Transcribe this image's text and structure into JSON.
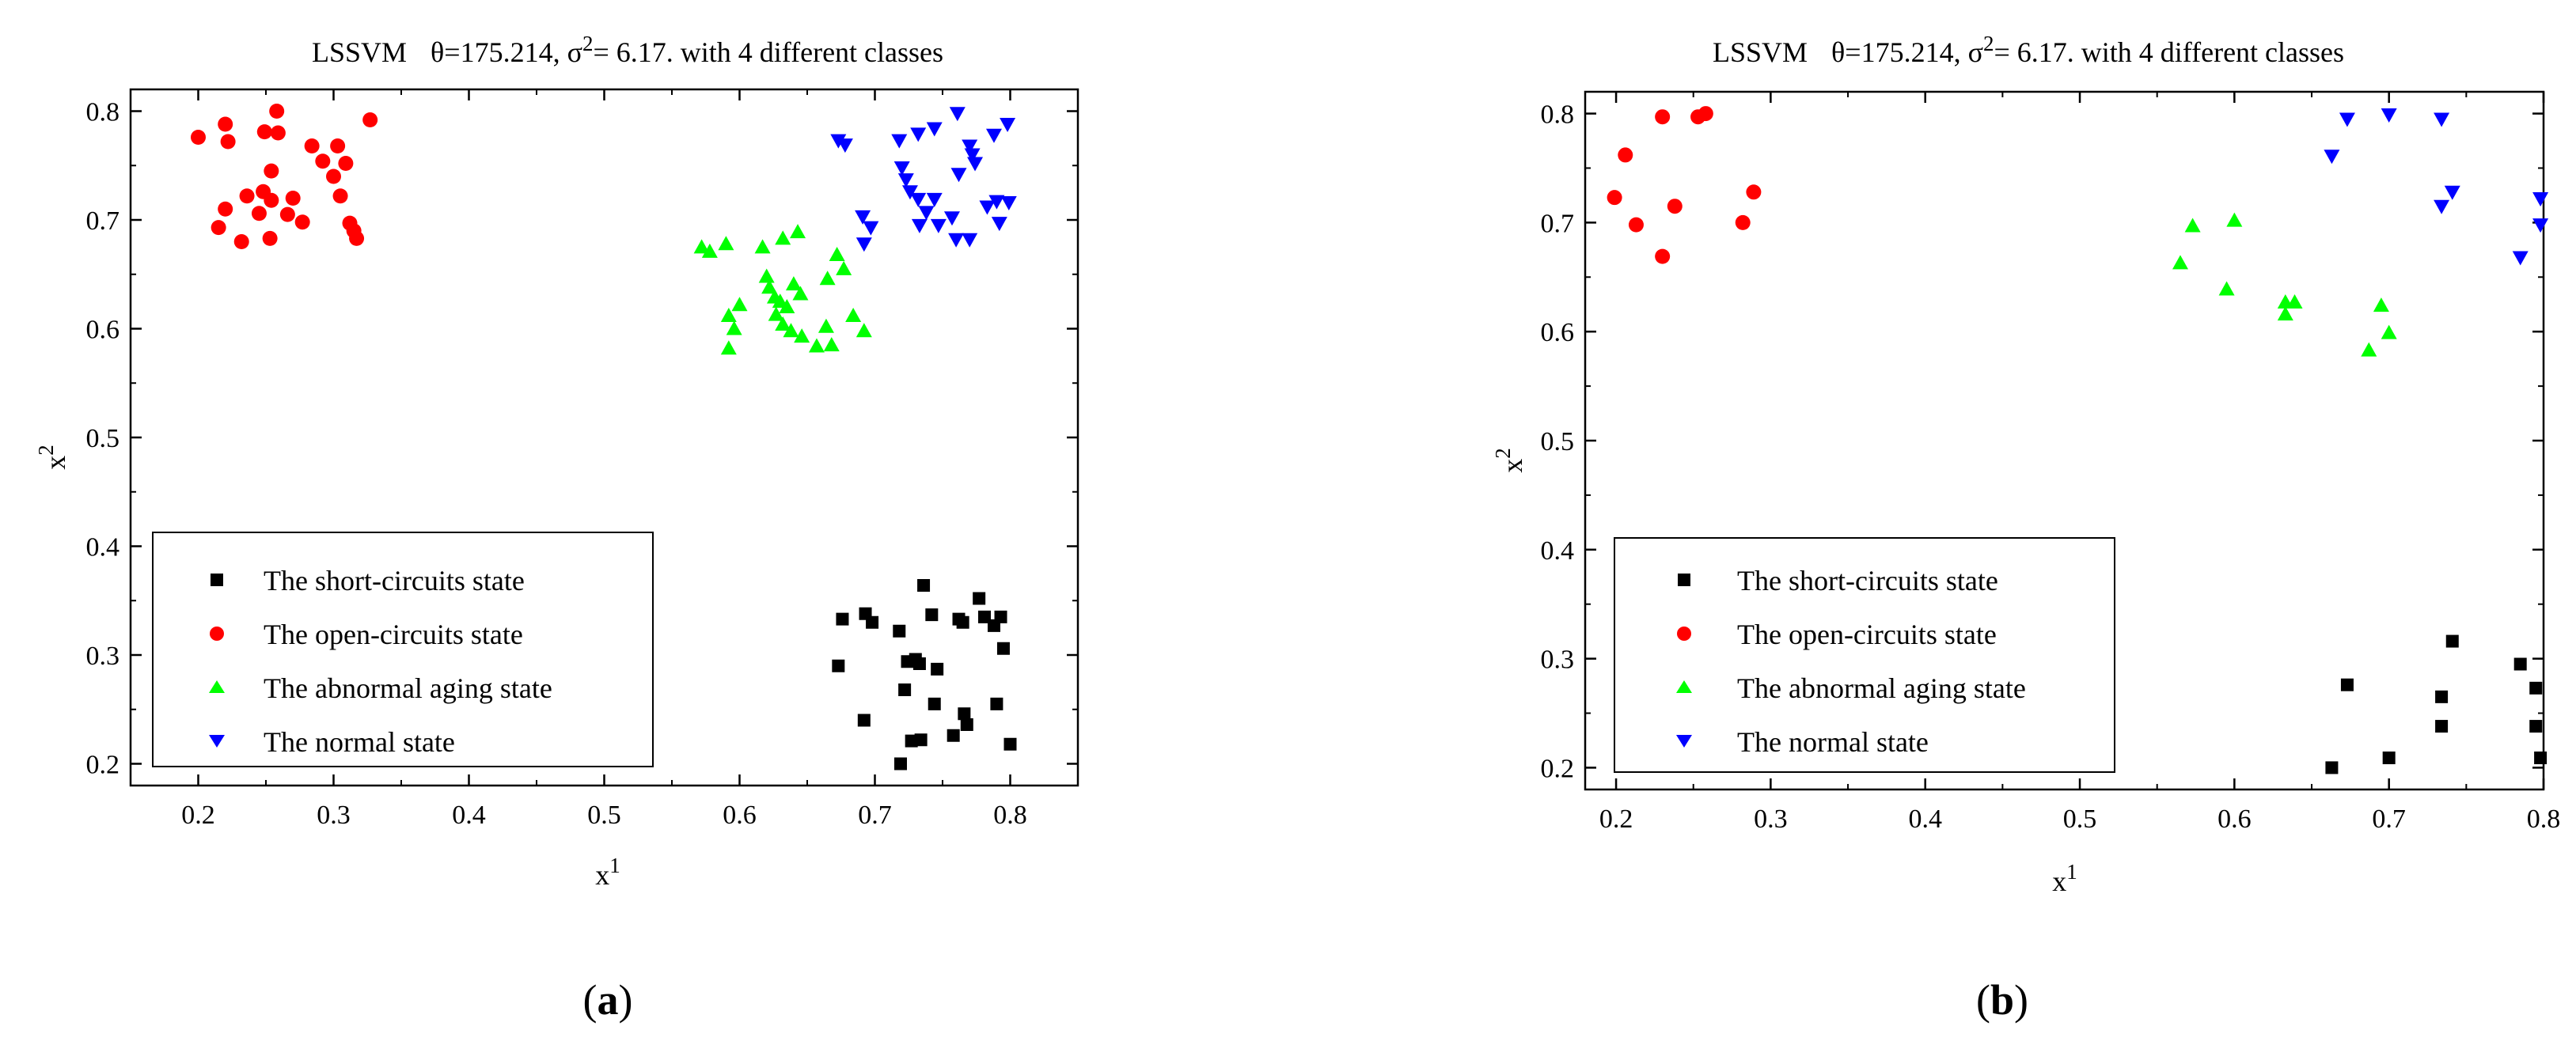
{
  "panels": [
    {
      "id": "a",
      "panel_label": "a",
      "title_prefix": "LSSVM",
      "title_theta": "θ=175.214, ",
      "title_sigma": "σ",
      "title_sigma_sup": "2",
      "title_suffix": "= 6.17.  with 4 different classes",
      "x_label": "x",
      "x_label_sup": "1",
      "y_label": "x",
      "y_label_sup": "2"
    },
    {
      "id": "b",
      "panel_label": "b",
      "title_prefix": "LSSVM",
      "title_theta": "θ=175.214, ",
      "title_sigma": "σ",
      "title_sigma_sup": "2",
      "title_suffix": "= 6.17.  with 4 different classes",
      "x_label": "x",
      "x_label_sup": "1",
      "y_label": "x",
      "y_label_sup": "2"
    }
  ],
  "legend": [
    {
      "key": "short",
      "label": "The short-circuits state",
      "marker": "square",
      "color": "#000000"
    },
    {
      "key": "open",
      "label": "The open-circuits state",
      "marker": "circle",
      "color": "#ff0000"
    },
    {
      "key": "aging",
      "label": "The abnormal aging state",
      "marker": "triangle-up",
      "color": "#00ff00"
    },
    {
      "key": "normal",
      "label": "The normal state",
      "marker": "triangle-down",
      "color": "#0000ff"
    }
  ],
  "chart_data": [
    {
      "type": "scatter",
      "panel": "a",
      "title": "LSSVM θ=175.214, σ2= 6.17. with 4 different classes",
      "xlabel": "x1",
      "ylabel": "x2",
      "xlim": [
        0.15,
        0.85
      ],
      "ylim": [
        0.18,
        0.82
      ],
      "xticks": [
        0.2,
        0.3,
        0.4,
        0.5,
        0.6,
        0.7,
        0.8
      ],
      "yticks": [
        0.2,
        0.3,
        0.4,
        0.5,
        0.6,
        0.7,
        0.8
      ],
      "legend_position": "bottom-left",
      "series": [
        {
          "name": "The short-circuits state",
          "key": "short",
          "points": [
            [
              0.676,
              0.333
            ],
            [
              0.693,
              0.338
            ],
            [
              0.698,
              0.33
            ],
            [
              0.718,
              0.322
            ],
            [
              0.736,
              0.364
            ],
            [
              0.742,
              0.337
            ],
            [
              0.762,
              0.333
            ],
            [
              0.765,
              0.33
            ],
            [
              0.777,
              0.352
            ],
            [
              0.781,
              0.335
            ],
            [
              0.788,
              0.327
            ],
            [
              0.793,
              0.335
            ],
            [
              0.673,
              0.29
            ],
            [
              0.724,
              0.294
            ],
            [
              0.73,
              0.296
            ],
            [
              0.733,
              0.292
            ],
            [
              0.746,
              0.287
            ],
            [
              0.795,
              0.306
            ],
            [
              0.722,
              0.268
            ],
            [
              0.744,
              0.255
            ],
            [
              0.79,
              0.255
            ],
            [
              0.692,
              0.24
            ],
            [
              0.766,
              0.246
            ],
            [
              0.768,
              0.236
            ],
            [
              0.727,
              0.221
            ],
            [
              0.734,
              0.222
            ],
            [
              0.758,
              0.226
            ],
            [
              0.719,
              0.2
            ],
            [
              0.8,
              0.218
            ]
          ]
        },
        {
          "name": "The open-circuits state",
          "key": "open",
          "points": [
            [
              0.2,
              0.776
            ],
            [
              0.22,
              0.788
            ],
            [
              0.222,
              0.772
            ],
            [
              0.249,
              0.781
            ],
            [
              0.258,
              0.8
            ],
            [
              0.259,
              0.78
            ],
            [
              0.284,
              0.768
            ],
            [
              0.303,
              0.768
            ],
            [
              0.327,
              0.792
            ],
            [
              0.22,
              0.71
            ],
            [
              0.236,
              0.722
            ],
            [
              0.245,
              0.706
            ],
            [
              0.248,
              0.726
            ],
            [
              0.254,
              0.745
            ],
            [
              0.254,
              0.718
            ],
            [
              0.266,
              0.705
            ],
            [
              0.27,
              0.72
            ],
            [
              0.292,
              0.754
            ],
            [
              0.3,
              0.74
            ],
            [
              0.309,
              0.752
            ],
            [
              0.305,
              0.722
            ],
            [
              0.312,
              0.697
            ],
            [
              0.315,
              0.69
            ],
            [
              0.317,
              0.683
            ],
            [
              0.215,
              0.693
            ],
            [
              0.232,
              0.68
            ],
            [
              0.253,
              0.683
            ],
            [
              0.277,
              0.698
            ]
          ]
        },
        {
          "name": "The abnormal aging state",
          "key": "aging",
          "points": [
            [
              0.572,
              0.675
            ],
            [
              0.578,
              0.671
            ],
            [
              0.59,
              0.678
            ],
            [
              0.617,
              0.675
            ],
            [
              0.632,
              0.683
            ],
            [
              0.643,
              0.689
            ],
            [
              0.672,
              0.668
            ],
            [
              0.677,
              0.655
            ],
            [
              0.62,
              0.648
            ],
            [
              0.622,
              0.638
            ],
            [
              0.626,
              0.629
            ],
            [
              0.63,
              0.625
            ],
            [
              0.635,
              0.62
            ],
            [
              0.64,
              0.641
            ],
            [
              0.645,
              0.632
            ],
            [
              0.627,
              0.613
            ],
            [
              0.665,
              0.646
            ],
            [
              0.6,
              0.622
            ],
            [
              0.592,
              0.612
            ],
            [
              0.596,
              0.6
            ],
            [
              0.632,
              0.604
            ],
            [
              0.638,
              0.598
            ],
            [
              0.646,
              0.593
            ],
            [
              0.657,
              0.584
            ],
            [
              0.668,
              0.585
            ],
            [
              0.664,
              0.602
            ],
            [
              0.684,
              0.612
            ],
            [
              0.692,
              0.598
            ],
            [
              0.592,
              0.582
            ]
          ]
        },
        {
          "name": "The normal state",
          "key": "normal",
          "points": [
            [
              0.673,
              0.773
            ],
            [
              0.678,
              0.769
            ],
            [
              0.718,
              0.773
            ],
            [
              0.732,
              0.779
            ],
            [
              0.744,
              0.784
            ],
            [
              0.761,
              0.798
            ],
            [
              0.77,
              0.768
            ],
            [
              0.772,
              0.76
            ],
            [
              0.788,
              0.778
            ],
            [
              0.798,
              0.788
            ],
            [
              0.72,
              0.748
            ],
            [
              0.723,
              0.737
            ],
            [
              0.726,
              0.726
            ],
            [
              0.732,
              0.719
            ],
            [
              0.744,
              0.719
            ],
            [
              0.738,
              0.707
            ],
            [
              0.747,
              0.695
            ],
            [
              0.762,
              0.742
            ],
            [
              0.774,
              0.752
            ],
            [
              0.783,
              0.712
            ],
            [
              0.79,
              0.717
            ],
            [
              0.799,
              0.716
            ],
            [
              0.691,
              0.703
            ],
            [
              0.697,
              0.693
            ],
            [
              0.733,
              0.695
            ],
            [
              0.757,
              0.702
            ],
            [
              0.76,
              0.682
            ],
            [
              0.77,
              0.682
            ],
            [
              0.792,
              0.697
            ],
            [
              0.692,
              0.678
            ]
          ]
        }
      ]
    },
    {
      "type": "scatter",
      "panel": "b",
      "title": "LSSVM θ=175.214, σ2= 6.17. with 4 different classes",
      "xlabel": "x1",
      "ylabel": "x2",
      "xlim": [
        0.18,
        0.8
      ],
      "ylim": [
        0.18,
        0.82
      ],
      "xticks": [
        0.2,
        0.3,
        0.4,
        0.5,
        0.6,
        0.7,
        0.8
      ],
      "yticks": [
        0.2,
        0.3,
        0.4,
        0.5,
        0.6,
        0.7,
        0.8
      ],
      "legend_position": "bottom-left",
      "series": [
        {
          "name": "The short-circuits state",
          "key": "short",
          "points": [
            [
              0.741,
              0.316
            ],
            [
              0.785,
              0.295
            ],
            [
              0.795,
              0.273
            ],
            [
              0.673,
              0.276
            ],
            [
              0.734,
              0.265
            ],
            [
              0.734,
              0.238
            ],
            [
              0.795,
              0.238
            ],
            [
              0.663,
              0.2
            ],
            [
              0.7,
              0.209
            ],
            [
              0.798,
              0.209
            ]
          ]
        },
        {
          "name": "The open-circuits state",
          "key": "open",
          "points": [
            [
              0.23,
              0.797
            ],
            [
              0.253,
              0.797
            ],
            [
              0.258,
              0.8
            ],
            [
              0.206,
              0.762
            ],
            [
              0.199,
              0.723
            ],
            [
              0.289,
              0.728
            ],
            [
              0.238,
              0.715
            ],
            [
              0.213,
              0.698
            ],
            [
              0.282,
              0.7
            ],
            [
              0.23,
              0.669
            ]
          ]
        },
        {
          "name": "The abnormal aging state",
          "key": "aging",
          "points": [
            [
              0.573,
              0.697
            ],
            [
              0.6,
              0.702
            ],
            [
              0.565,
              0.663
            ],
            [
              0.595,
              0.639
            ],
            [
              0.633,
              0.627
            ],
            [
              0.639,
              0.627
            ],
            [
              0.633,
              0.616
            ],
            [
              0.695,
              0.624
            ],
            [
              0.7,
              0.599
            ],
            [
              0.687,
              0.583
            ]
          ]
        },
        {
          "name": "The normal state",
          "key": "normal",
          "points": [
            [
              0.673,
              0.795
            ],
            [
              0.7,
              0.799
            ],
            [
              0.734,
              0.795
            ],
            [
              0.663,
              0.761
            ],
            [
              0.741,
              0.728
            ],
            [
              0.734,
              0.715
            ],
            [
              0.798,
              0.722
            ],
            [
              0.798,
              0.698
            ],
            [
              0.785,
              0.668
            ]
          ]
        }
      ]
    }
  ]
}
